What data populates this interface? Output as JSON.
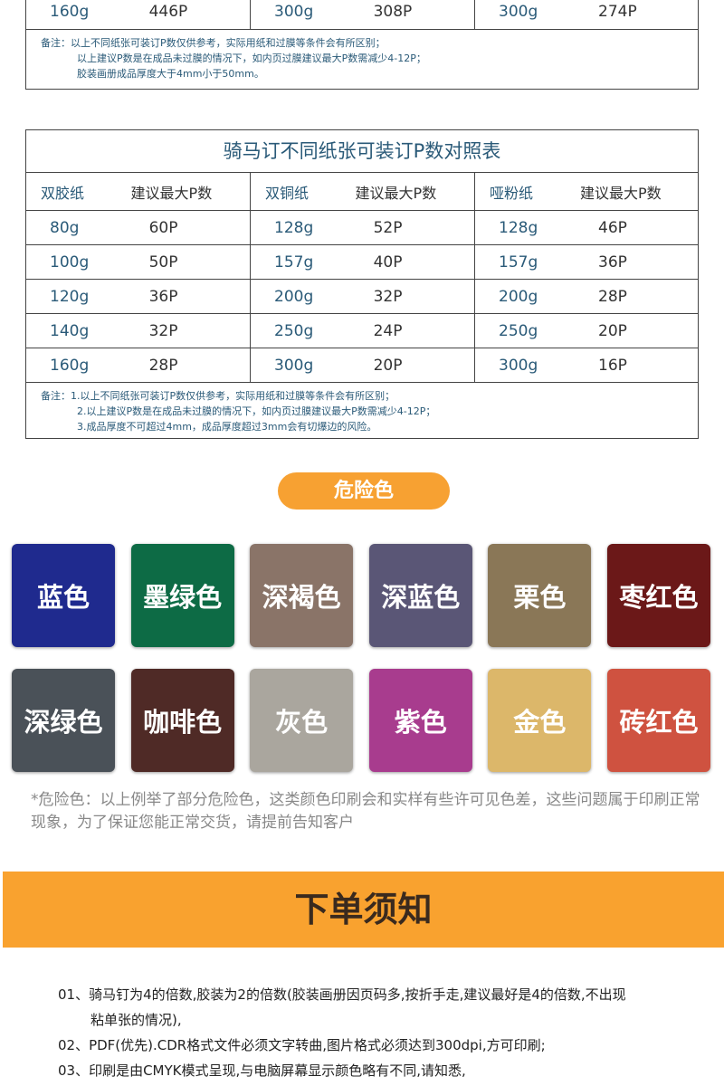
{
  "top_table": {
    "last_row": [
      [
        "160g",
        "446P"
      ],
      [
        "300g",
        "308P"
      ],
      [
        "300g",
        "274P"
      ]
    ],
    "notes": [
      "备注：以上不同纸张可装订P数仅供参考，实际用纸和过膜等条件会有所区别；",
      "以上建议P数是在成品未过膜的情况下，如内页过膜建议最大P数需减少4-12P；",
      "胶装画册成品厚度大于4mm小于50mm。"
    ]
  },
  "saddle_table": {
    "title": "骑马订不同纸张可装订P数对照表",
    "headers": [
      [
        "双胶纸",
        "建议最大P数"
      ],
      [
        "双铜纸",
        "建议最大P数"
      ],
      [
        "哑粉纸",
        "建议最大P数"
      ]
    ],
    "rows": [
      [
        [
          "80g",
          "60P"
        ],
        [
          "128g",
          "52P"
        ],
        [
          "128g",
          "46P"
        ]
      ],
      [
        [
          "100g",
          "50P"
        ],
        [
          "157g",
          "40P"
        ],
        [
          "157g",
          "36P"
        ]
      ],
      [
        [
          "120g",
          "36P"
        ],
        [
          "200g",
          "32P"
        ],
        [
          "200g",
          "28P"
        ]
      ],
      [
        [
          "140g",
          "32P"
        ],
        [
          "250g",
          "24P"
        ],
        [
          "250g",
          "20P"
        ]
      ],
      [
        [
          "160g",
          "28P"
        ],
        [
          "300g",
          "20P"
        ],
        [
          "300g",
          "16P"
        ]
      ]
    ],
    "notes": [
      "备注：1.以上不同纸张可装订P数仅供参考，实际用纸和过膜等条件会有所区别；",
      "2.以上建议P数是在成品未过膜的情况下，如内页过膜建议最大P数需减少4-12P；",
      "3.成品厚度不可超过4mm，成品厚度超过3mm会有切爆边的风险。"
    ]
  },
  "danger": {
    "label": "危险色",
    "swatches": [
      {
        "name": "蓝色",
        "color": "#1f2a8e"
      },
      {
        "name": "墨绿色",
        "color": "#0d6b45"
      },
      {
        "name": "深褐色",
        "color": "#8a7468"
      },
      {
        "name": "深蓝色",
        "color": "#5a5676"
      },
      {
        "name": "栗色",
        "color": "#8a7757"
      },
      {
        "name": "枣红色",
        "color": "#6b1818"
      },
      {
        "name": "深绿色",
        "color": "#4a5158"
      },
      {
        "name": "咖啡色",
        "color": "#4f2a26"
      },
      {
        "name": "灰色",
        "color": "#aaa69e"
      },
      {
        "name": "紫色",
        "color": "#a83c8e"
      },
      {
        "name": "金色",
        "color": "#dcb76a"
      },
      {
        "name": "砖红色",
        "color": "#cf5240"
      }
    ],
    "caption": "*危险色：以上例举了部分危险色，这类颜色印刷会和实样有些许可见色差，这些问题属于印刷正常现象，为了保证您能正常交货，请提前告知客户"
  },
  "order_notice": {
    "title": "下单须知",
    "items": [
      [
        "01、骑马钉为4的倍数,胶装为2的倍数(胶装画册因页码多,按折手走,建议最好是4的倍数,不出现",
        "粘单张的情况),"
      ],
      [
        "02、PDF(优先).CDR格式文件必须文字转曲,图片格式必须达到300dpi,方可印刷;"
      ],
      [
        "03、印刷是由CMYK模式呈现,与电脑屏幕显示颜色略有不同,请知悉,"
      ]
    ]
  }
}
